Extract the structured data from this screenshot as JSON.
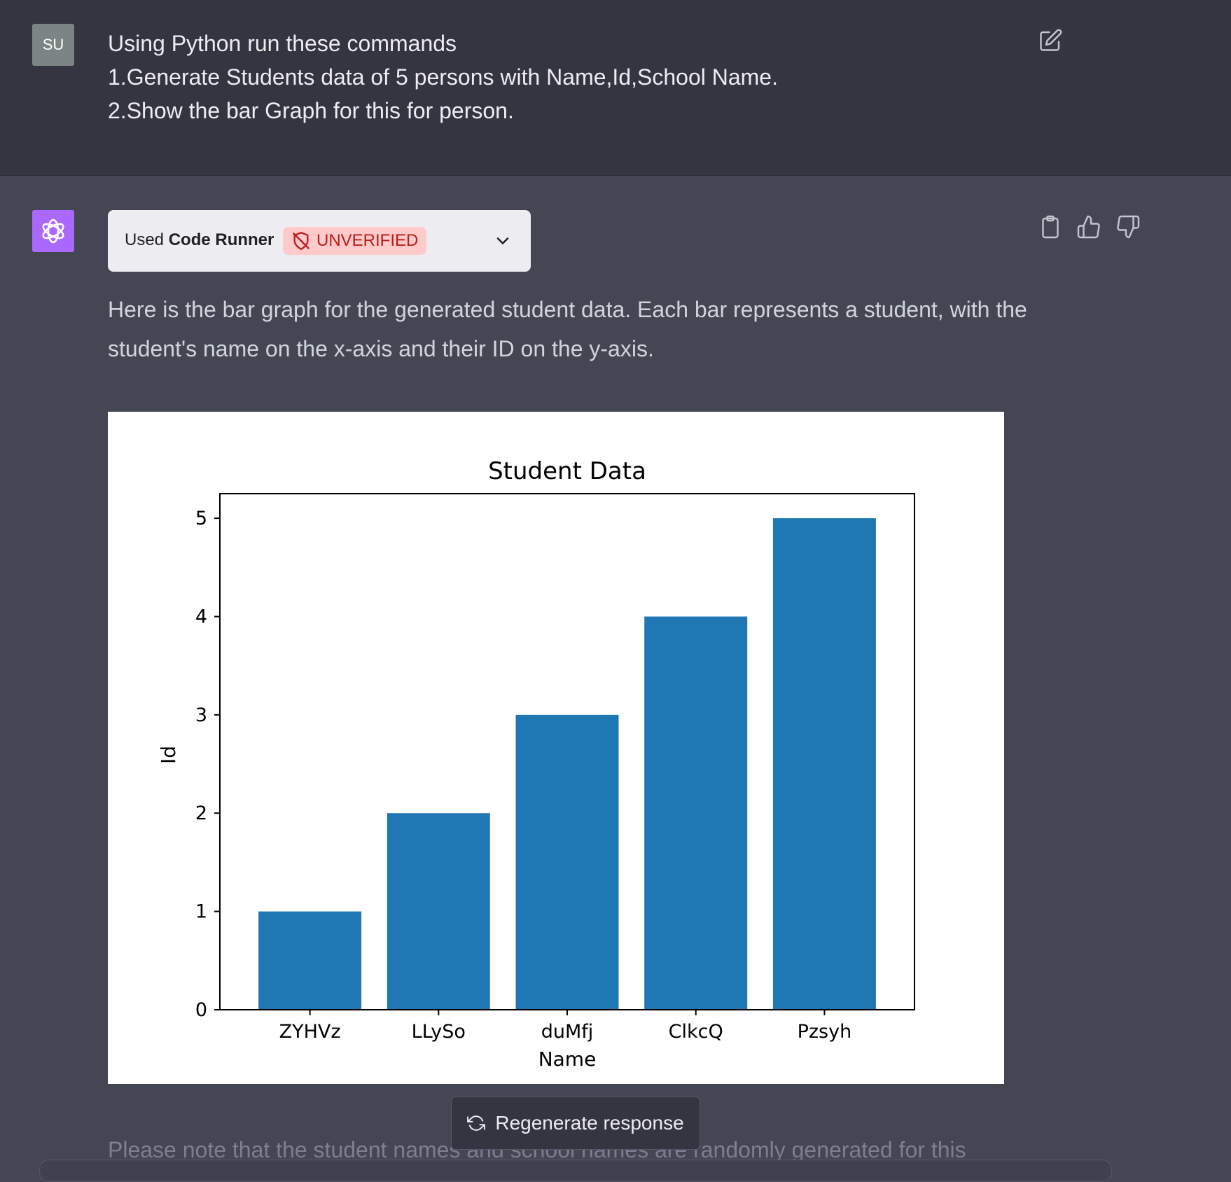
{
  "user_message": {
    "avatar_initials": "SU",
    "lines": [
      "Using Python run these commands",
      "1.Generate Students data of 5 persons with Name,Id,School Name.",
      "2.Show the bar Graph for this for person."
    ]
  },
  "assistant_message": {
    "plugin": {
      "used_prefix": "Used",
      "name": "Code Runner",
      "badge": "UNVERIFIED"
    },
    "paragraph_line1": "Here is the bar graph for the generated student data. Each bar represents a student, with the",
    "paragraph_line2": "student's name on the x-axis and their ID on the y-axis.",
    "bottom_text": "Please note that the student names and school names are randomly generated for this"
  },
  "regenerate_label": "Regenerate response",
  "colors": {
    "bar": "#1f77b4",
    "avatar_bot": "#ab68ff",
    "badge_bg": "#fecaca",
    "badge_text": "#b91c1c"
  },
  "chart_data": {
    "type": "bar",
    "title": "Student Data",
    "xlabel": "Name",
    "ylabel": "Id",
    "categories": [
      "ZYHVz",
      "LLySo",
      "duMfj",
      "ClkcQ",
      "Pzsyh"
    ],
    "values": [
      1,
      2,
      3,
      4,
      5
    ],
    "ylim": [
      0,
      5.25
    ],
    "yticks": [
      0,
      1,
      2,
      3,
      4,
      5
    ],
    "grid": false
  }
}
